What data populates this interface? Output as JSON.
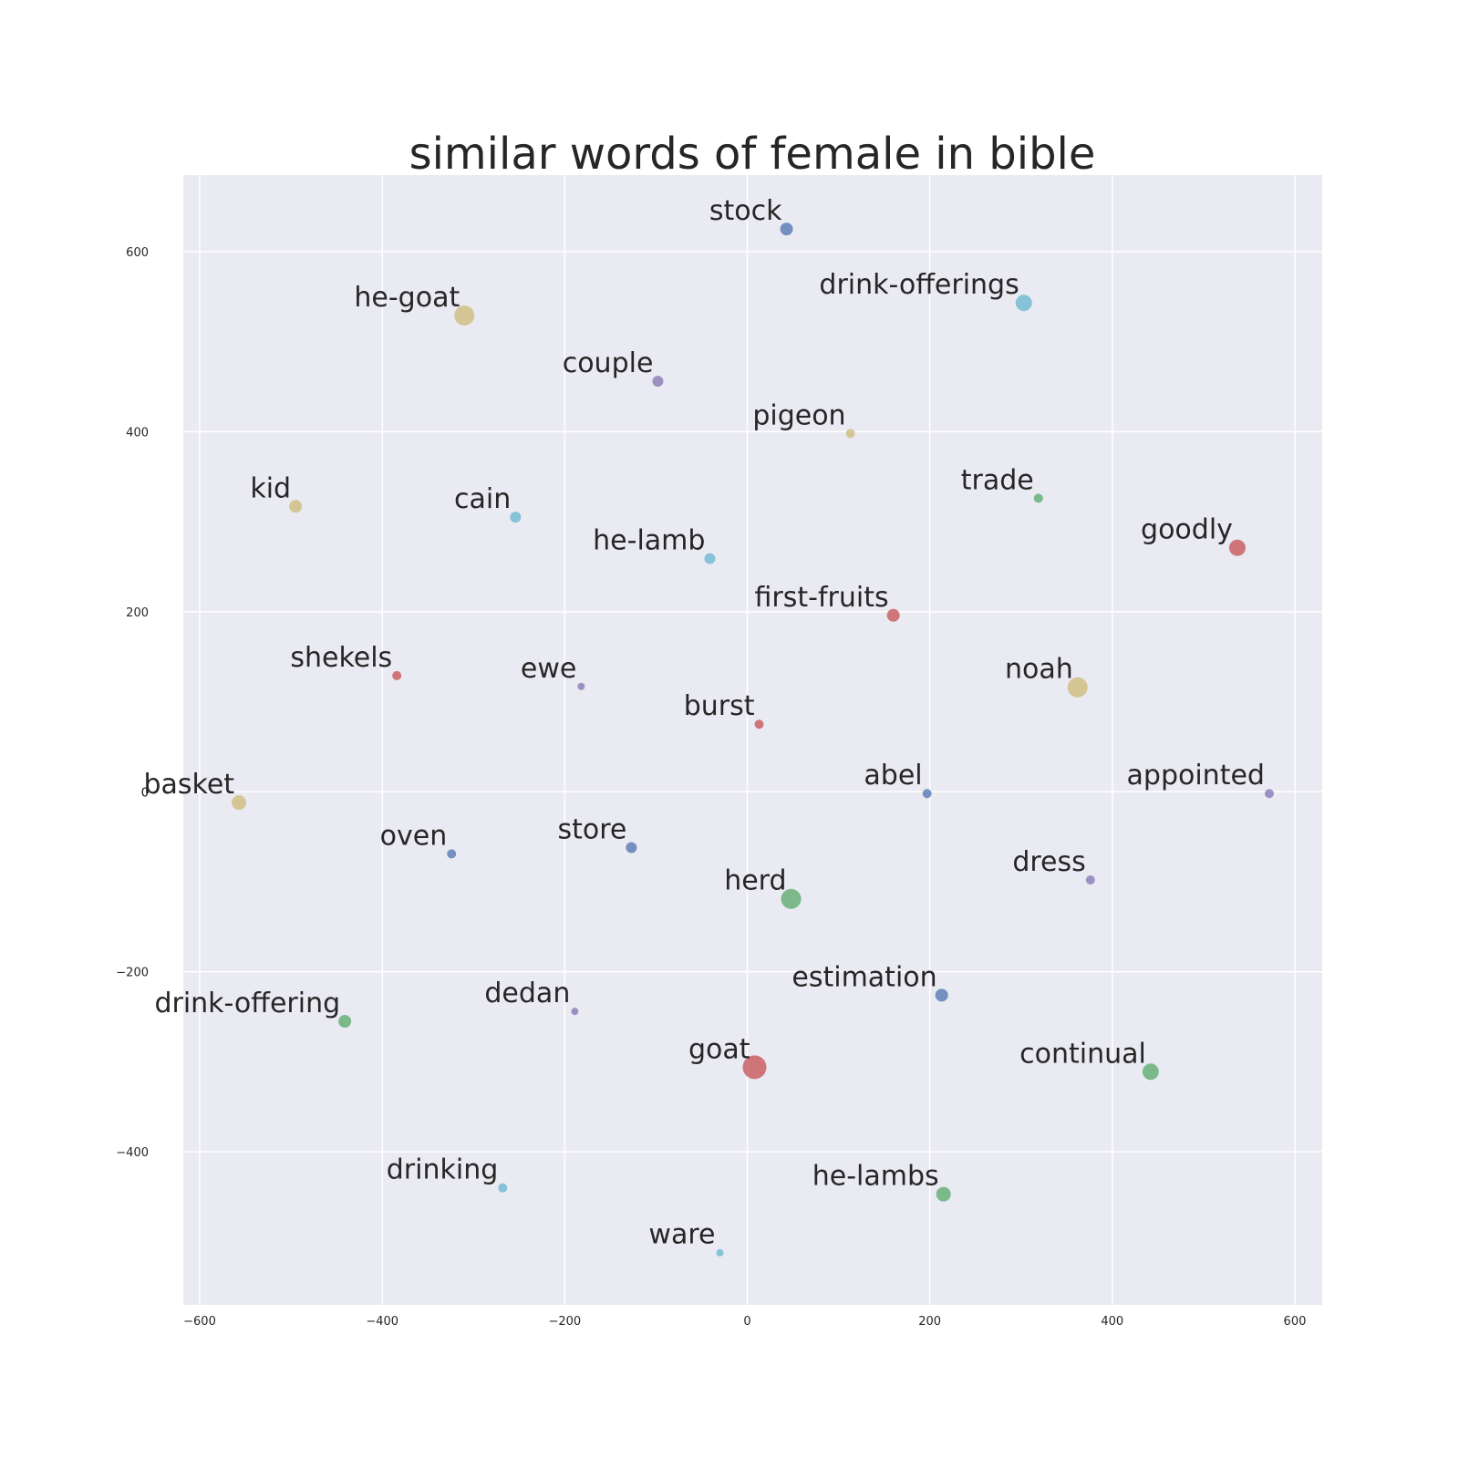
{
  "chart_data": {
    "type": "scatter",
    "title": "similar words of female in bible",
    "xlabel": "",
    "ylabel": "",
    "xlim": [
      -618,
      630
    ],
    "ylim": [
      -570,
      685
    ],
    "x_ticks": [
      -600,
      -400,
      -200,
      0,
      200,
      400,
      600
    ],
    "y_ticks": [
      -400,
      -200,
      0,
      200,
      400,
      600
    ],
    "x_tick_labels": [
      "−600",
      "−400",
      "−200",
      "0",
      "200",
      "400",
      "600"
    ],
    "y_tick_labels": [
      "−400",
      "−200",
      "0",
      "200",
      "400",
      "600"
    ],
    "grid": true,
    "colors": {
      "background": "#eaeaf2",
      "blue": "#4c72b0",
      "green": "#55a868",
      "red": "#c44e52",
      "purple": "#8172b2",
      "gold": "#ccb974",
      "cyan": "#64b5cd"
    },
    "points": [
      {
        "label": "stock",
        "x": 43,
        "y": 625,
        "size": 7,
        "color": "#4c72b0"
      },
      {
        "label": "drink-offerings",
        "x": 303,
        "y": 543,
        "size": 9,
        "color": "#64b5cd"
      },
      {
        "label": "he-goat",
        "x": -310,
        "y": 529,
        "size": 11,
        "color": "#ccb974"
      },
      {
        "label": "couple",
        "x": -98,
        "y": 456,
        "size": 6,
        "color": "#8172b2"
      },
      {
        "label": "pigeon",
        "x": 113,
        "y": 398,
        "size": 5,
        "color": "#ccb974"
      },
      {
        "label": "trade",
        "x": 319,
        "y": 326,
        "size": 5,
        "color": "#55a868"
      },
      {
        "label": "kid",
        "x": -495,
        "y": 317,
        "size": 7,
        "color": "#ccb974"
      },
      {
        "label": "cain",
        "x": -254,
        "y": 305,
        "size": 6,
        "color": "#64b5cd"
      },
      {
        "label": "goodly",
        "x": 537,
        "y": 271,
        "size": 9,
        "color": "#c44e52"
      },
      {
        "label": "he-lamb",
        "x": -41,
        "y": 259,
        "size": 6,
        "color": "#64b5cd"
      },
      {
        "label": "first-fruits",
        "x": 160,
        "y": 196,
        "size": 7,
        "color": "#c44e52"
      },
      {
        "label": "shekels",
        "x": -384,
        "y": 129,
        "size": 5,
        "color": "#c44e52"
      },
      {
        "label": "ewe",
        "x": -182,
        "y": 117,
        "size": 4,
        "color": "#8172b2"
      },
      {
        "label": "noah",
        "x": 362,
        "y": 116,
        "size": 11,
        "color": "#ccb974"
      },
      {
        "label": "burst",
        "x": 13,
        "y": 75,
        "size": 5,
        "color": "#c44e52"
      },
      {
        "label": "abel",
        "x": 197,
        "y": -2,
        "size": 5,
        "color": "#4c72b0"
      },
      {
        "label": "appointed",
        "x": 572,
        "y": -2,
        "size": 5,
        "color": "#8172b2"
      },
      {
        "label": "basket",
        "x": -557,
        "y": -12,
        "size": 8,
        "color": "#ccb974"
      },
      {
        "label": "oven",
        "x": -324,
        "y": -69,
        "size": 5,
        "color": "#4c72b0"
      },
      {
        "label": "store",
        "x": -127,
        "y": -62,
        "size": 6,
        "color": "#4c72b0"
      },
      {
        "label": "dress",
        "x": 376,
        "y": -98,
        "size": 5,
        "color": "#8172b2"
      },
      {
        "label": "herd",
        "x": 48,
        "y": -119,
        "size": 11,
        "color": "#55a868"
      },
      {
        "label": "estimation",
        "x": 213,
        "y": -226,
        "size": 7,
        "color": "#4c72b0"
      },
      {
        "label": "drink-offering",
        "x": -441,
        "y": -255,
        "size": 7,
        "color": "#55a868"
      },
      {
        "label": "dedan",
        "x": -189,
        "y": -244,
        "size": 4,
        "color": "#8172b2"
      },
      {
        "label": "goat",
        "x": 8,
        "y": -306,
        "size": 13,
        "color": "#c44e52"
      },
      {
        "label": "continual",
        "x": 442,
        "y": -311,
        "size": 9,
        "color": "#55a868"
      },
      {
        "label": "drinking",
        "x": -268,
        "y": -440,
        "size": 5,
        "color": "#64b5cd"
      },
      {
        "label": "he-lambs",
        "x": 215,
        "y": -447,
        "size": 8,
        "color": "#55a868"
      },
      {
        "label": "ware",
        "x": -30,
        "y": -512,
        "size": 4,
        "color": "#64b5cd"
      }
    ]
  }
}
